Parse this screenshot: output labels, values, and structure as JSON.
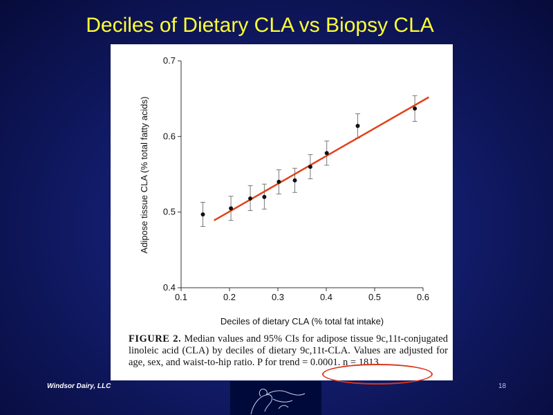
{
  "slide": {
    "title": "Deciles of Dietary CLA vs Biopsy CLA",
    "footer_left": "Windsor Dairy, LLC",
    "page_number": "18"
  },
  "caption": {
    "label": "FIGURE 2.",
    "text": "Median values and 95% CIs for adipose tissue 9c,11t-conjugated linoleic acid (CLA) by deciles of dietary 9c,11t-CLA. Values are adjusted for age, sex, and waist-to-hip ratio. P for trend = 0.0001. n = 1813."
  },
  "chart_data": {
    "type": "scatter",
    "xlabel": "Deciles of dietary CLA (% total fat intake)",
    "ylabel": "Adipose tissue CLA (% total fatty acids)",
    "xlim": [
      0.1,
      0.6
    ],
    "ylim": [
      0.4,
      0.7
    ],
    "xticks": [
      "0.1",
      "0.2",
      "0.3",
      "0.4",
      "0.5",
      "0.6"
    ],
    "yticks": [
      "0.4",
      "0.5",
      "0.6",
      "0.7"
    ],
    "grid": false,
    "points": [
      {
        "x": 0.145,
        "y": 0.497,
        "lo": 0.481,
        "hi": 0.513
      },
      {
        "x": 0.203,
        "y": 0.505,
        "lo": 0.489,
        "hi": 0.521
      },
      {
        "x": 0.243,
        "y": 0.518,
        "lo": 0.502,
        "hi": 0.535
      },
      {
        "x": 0.272,
        "y": 0.52,
        "lo": 0.504,
        "hi": 0.537
      },
      {
        "x": 0.302,
        "y": 0.54,
        "lo": 0.524,
        "hi": 0.556
      },
      {
        "x": 0.335,
        "y": 0.542,
        "lo": 0.526,
        "hi": 0.558
      },
      {
        "x": 0.367,
        "y": 0.56,
        "lo": 0.544,
        "hi": 0.576
      },
      {
        "x": 0.401,
        "y": 0.578,
        "lo": 0.562,
        "hi": 0.594
      },
      {
        "x": 0.465,
        "y": 0.614,
        "lo": 0.598,
        "hi": 0.63
      },
      {
        "x": 0.583,
        "y": 0.637,
        "lo": 0.62,
        "hi": 0.654
      }
    ],
    "trend_line": {
      "x": [
        0.168,
        0.612
      ],
      "y": [
        0.489,
        0.652
      ],
      "color": "#e0421a"
    }
  }
}
